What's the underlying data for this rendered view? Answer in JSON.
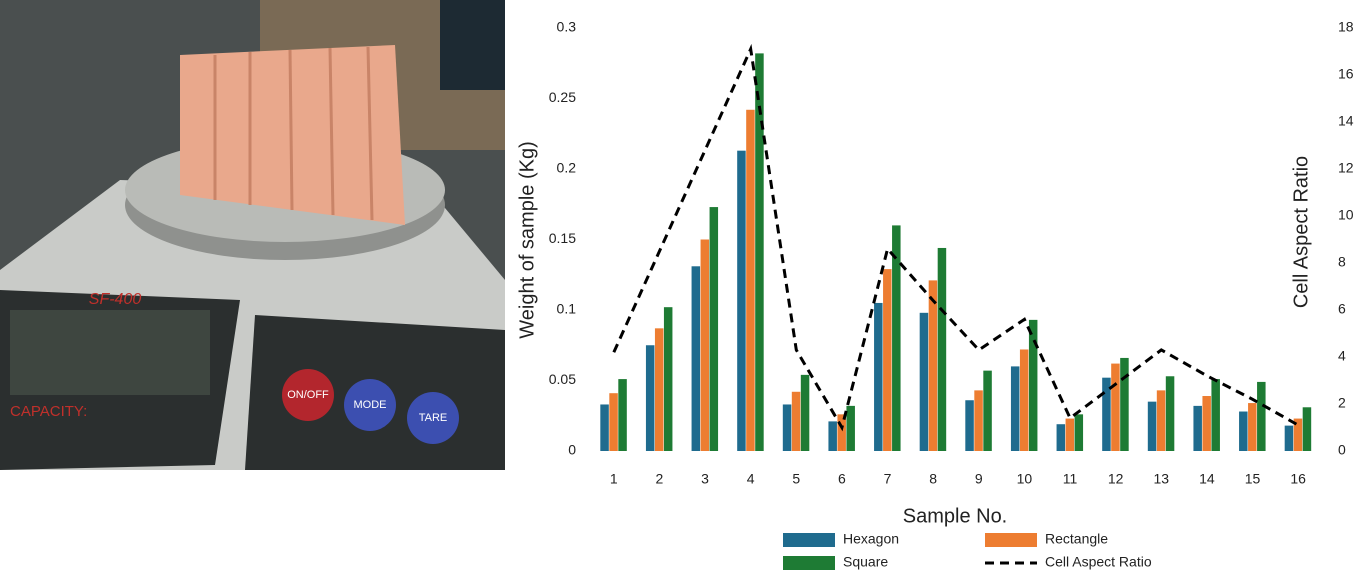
{
  "photo": {
    "model": "SF-400",
    "capacity": "CAPACITY:",
    "buttons": [
      "ON/OFF",
      "MODE",
      "TARE"
    ]
  },
  "chart_data": {
    "type": "bar",
    "x_label": "Sample No.",
    "y_label": "Weight of sample  (Kg)",
    "y2_label": "Cell Aspect Ratio",
    "categories": [
      "1",
      "2",
      "3",
      "4",
      "5",
      "6",
      "7",
      "8",
      "9",
      "10",
      "11",
      "12",
      "13",
      "14",
      "15",
      "16"
    ],
    "series": [
      {
        "name": "Hexagon",
        "color": "#1f6b8e",
        "values": [
          0.033,
          0.075,
          0.131,
          0.213,
          0.033,
          0.021,
          0.105,
          0.098,
          0.036,
          0.06,
          0.019,
          0.052,
          0.035,
          0.032,
          0.028,
          0.018
        ]
      },
      {
        "name": "Rectangle",
        "color": "#ed7d31",
        "values": [
          0.041,
          0.087,
          0.15,
          0.242,
          0.042,
          0.026,
          0.129,
          0.121,
          0.043,
          0.072,
          0.023,
          0.062,
          0.043,
          0.039,
          0.034,
          0.023
        ]
      },
      {
        "name": "Square",
        "color": "#1e7b34",
        "values": [
          0.051,
          0.102,
          0.173,
          0.282,
          0.054,
          0.032,
          0.16,
          0.144,
          0.057,
          0.093,
          0.026,
          0.066,
          0.053,
          0.051,
          0.049,
          0.031
        ]
      },
      {
        "name": "Cell Aspect Ratio",
        "color": "#000000",
        "type": "line",
        "line_style": "dashed",
        "axis": "y2",
        "values": [
          4.2,
          8.5,
          12.8,
          17.1,
          4.3,
          1.0,
          8.6,
          6.4,
          4.3,
          5.6,
          1.4,
          2.85,
          4.3,
          3.2,
          2.2,
          1.1
        ]
      }
    ],
    "ylim": [
      0,
      0.3
    ],
    "yticks": [
      0,
      0.05,
      0.1,
      0.15,
      0.2,
      0.25,
      0.3
    ],
    "y2lim": [
      0,
      18
    ],
    "y2ticks": [
      0,
      2,
      4,
      6,
      8,
      10,
      12,
      14,
      16,
      18
    ],
    "grid": false,
    "legend": "bottom"
  }
}
